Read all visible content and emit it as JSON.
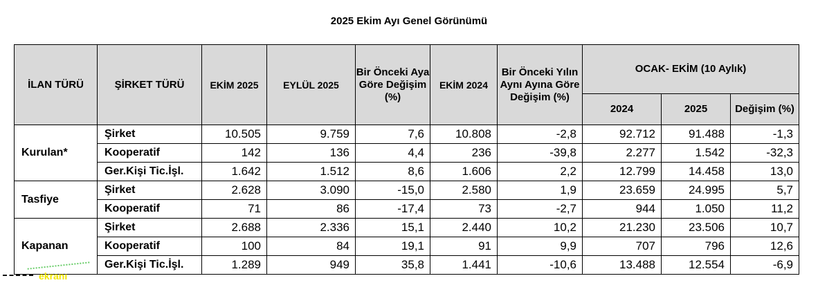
{
  "title": "2025 Ekim Ayı Genel Görünümü",
  "headers": {
    "ilan_turu": "İLAN TÜRÜ",
    "sirket_turu": "ŞİRKET TÜRÜ",
    "ekim_2025": "EKİM 2025",
    "eylul_2025": "EYLÜL 2025",
    "aya_gore": "Bir Önceki Aya Göre Değişim (%)",
    "ekim_2024": "EKİM 2024",
    "yilin_ayina_gore": "Bir Önceki Yılın Aynı Ayına Göre Değişim (%)",
    "ocak_ekim": "OCAK- EKİM (10 Aylık)",
    "y2024": "2024",
    "y2025": "2025",
    "degisim": "Değişim (%)"
  },
  "groups": [
    {
      "label": "Kurulan*",
      "rows": [
        {
          "type": "Şirket",
          "values": [
            "10.505",
            "9.759",
            "7,6",
            "10.808",
            "-2,8",
            "92.712",
            "91.488",
            "-1,3"
          ]
        },
        {
          "type": "Kooperatif",
          "values": [
            "142",
            "136",
            "4,4",
            "236",
            "-39,8",
            "2.277",
            "1.542",
            "-32,3"
          ]
        },
        {
          "type": "Ger.Kişi Tic.İşl.",
          "values": [
            "1.642",
            "1.512",
            "8,6",
            "1.606",
            "2,2",
            "12.799",
            "14.458",
            "13,0"
          ]
        }
      ]
    },
    {
      "label": "Tasfiye",
      "rows": [
        {
          "type": "Şirket",
          "values": [
            "2.628",
            "3.090",
            "-15,0",
            "2.580",
            "1,9",
            "23.659",
            "24.995",
            "5,7"
          ]
        },
        {
          "type": "Kooperatif",
          "values": [
            "71",
            "86",
            "-17,4",
            "73",
            "-2,7",
            "944",
            "1.050",
            "11,2"
          ]
        }
      ]
    },
    {
      "label": "Kapanan",
      "rows": [
        {
          "type": "Şirket",
          "values": [
            "2.688",
            "2.336",
            "15,1",
            "2.440",
            "10,2",
            "21.230",
            "23.506",
            "10,7"
          ]
        },
        {
          "type": "Kooperatif",
          "values": [
            "100",
            "84",
            "19,1",
            "91",
            "9,9",
            "707",
            "796",
            "12,6"
          ]
        },
        {
          "type": "Ger.Kişi Tic.İşl.",
          "values": [
            "1.289",
            "949",
            "35,8",
            "1.441",
            "-10,6",
            "13.488",
            "12.554",
            "-6,9"
          ]
        }
      ]
    }
  ],
  "watermark": "ekranı",
  "colors": {
    "header_bg": "#d9d9d9",
    "watermark": "#f3e600"
  }
}
